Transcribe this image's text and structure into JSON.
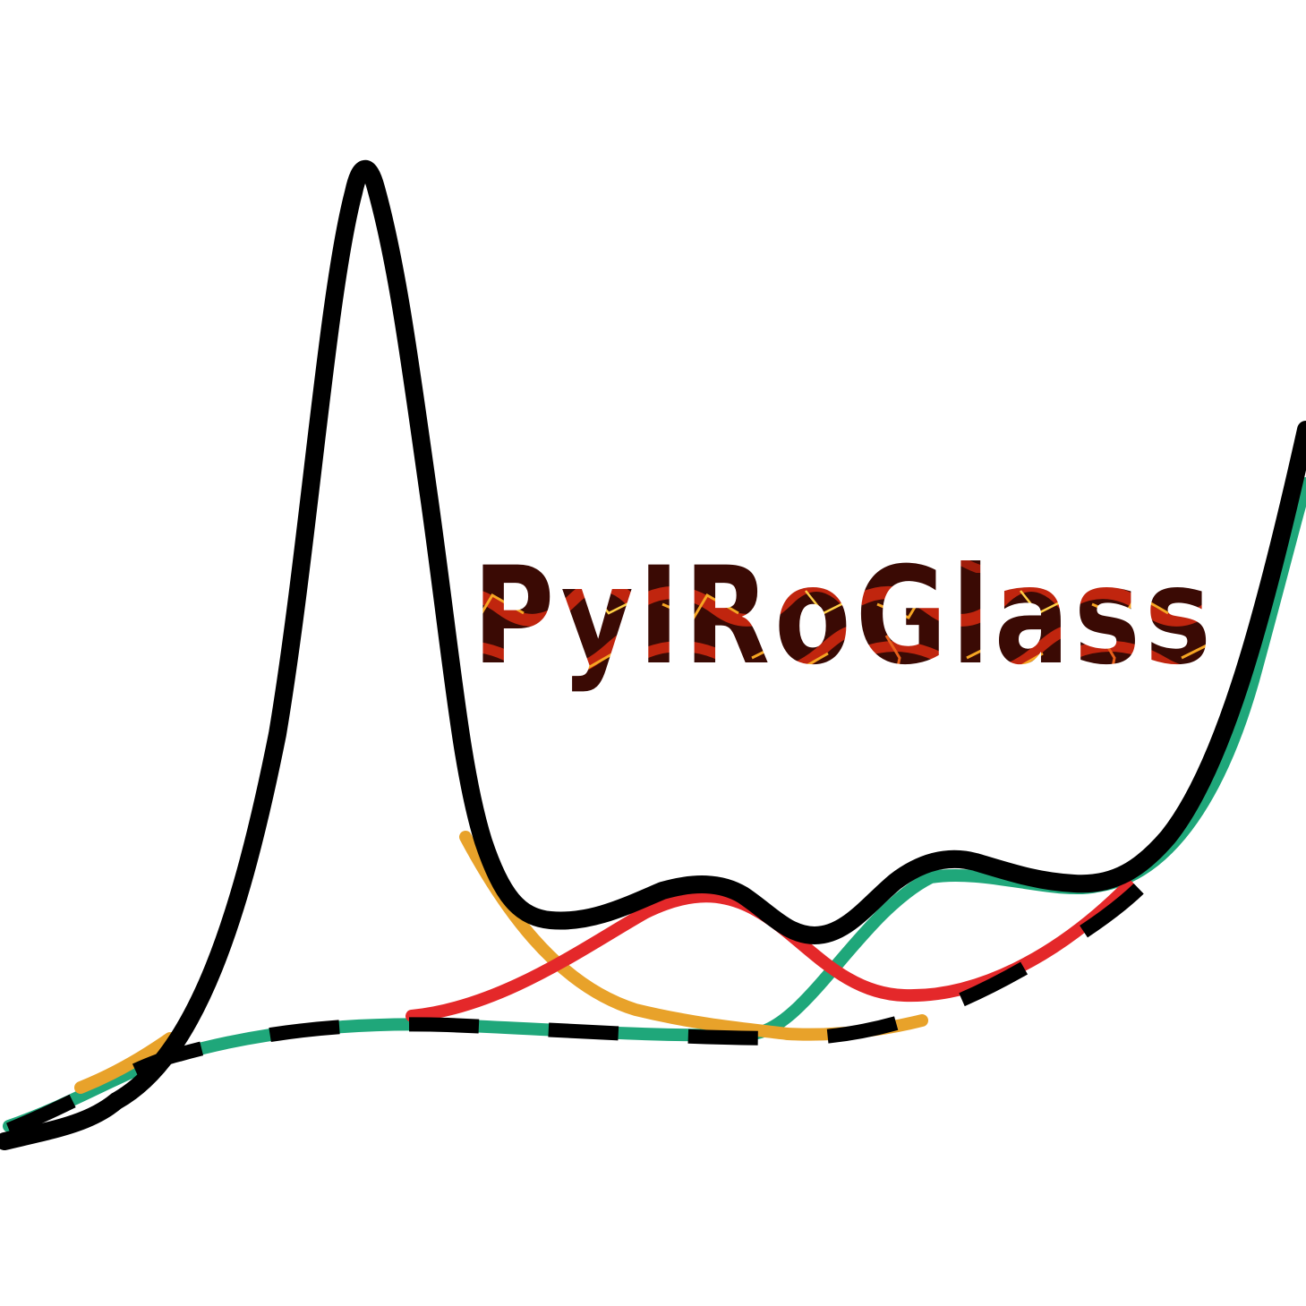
{
  "logo": {
    "wordmark": "PyIRoGlass",
    "colors": {
      "spectrum": "#000000",
      "baseline_dash": "#000000",
      "orange_peak": "#E8A22A",
      "red_peak": "#E4282A",
      "green_peak": "#1FA77A",
      "lava_dark": "#3a0a04",
      "lava_mid": "#c0250e",
      "lava_bright": "#f6a623",
      "background": "#ffffff"
    }
  }
}
